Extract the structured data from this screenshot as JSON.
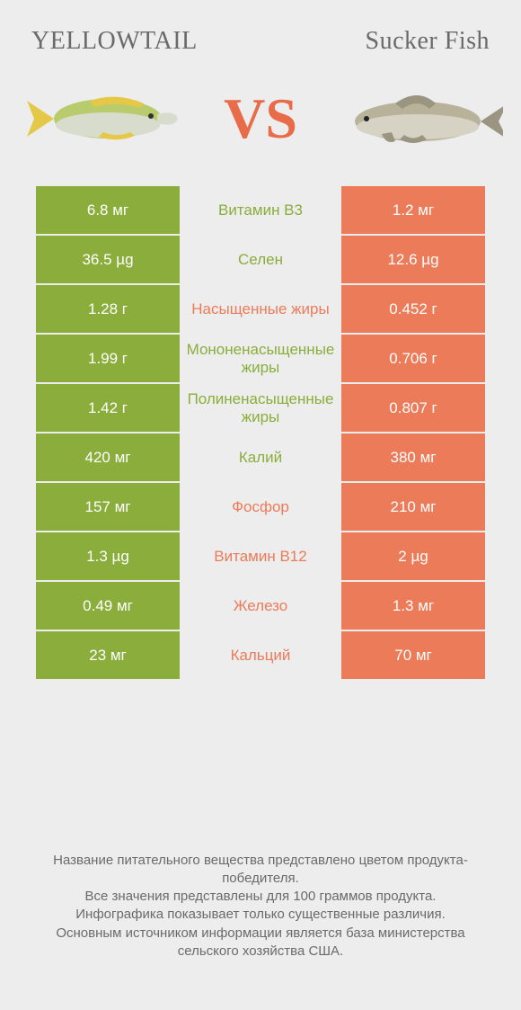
{
  "header": {
    "left_title": "YELLOWTAIL",
    "right_title": "Sucker Fish",
    "vs_text": "VS"
  },
  "colors": {
    "left_bar": "#8aad3b",
    "right_bar": "#ec7b59",
    "vs_color": "#e86b4a",
    "bg": "#ededed",
    "text_gray": "#6a6a6a"
  },
  "rows": [
    {
      "left": "6.8 мг",
      "label": "Витамин B3",
      "winner": "green",
      "right": "1.2 мг"
    },
    {
      "left": "36.5 µg",
      "label": "Селен",
      "winner": "green",
      "right": "12.6 µg"
    },
    {
      "left": "1.28 г",
      "label": "Насыщенные жиры",
      "winner": "orange",
      "right": "0.452 г"
    },
    {
      "left": "1.99 г",
      "label": "Мононенасыщенные жиры",
      "winner": "green",
      "right": "0.706 г"
    },
    {
      "left": "1.42 г",
      "label": "Полиненасыщенные жиры",
      "winner": "green",
      "right": "0.807 г"
    },
    {
      "left": "420 мг",
      "label": "Калий",
      "winner": "green",
      "right": "380 мг"
    },
    {
      "left": "157 мг",
      "label": "Фосфор",
      "winner": "orange",
      "right": "210 мг"
    },
    {
      "left": "1.3 µg",
      "label": "Витамин B12",
      "winner": "orange",
      "right": "2 µg"
    },
    {
      "left": "0.49 мг",
      "label": "Железо",
      "winner": "orange",
      "right": "1.3 мг"
    },
    {
      "left": "23 мг",
      "label": "Кальций",
      "winner": "orange",
      "right": "70 мг"
    }
  ],
  "footer": {
    "line1": "Название питательного вещества представлено цветом продукта-победителя.",
    "line2": "Все значения представлены для 100 граммов продукта.",
    "line3": "Инфографика показывает только существенные различия.",
    "line4": "Основным источником информации является база министерства сельского хозяйства США."
  }
}
